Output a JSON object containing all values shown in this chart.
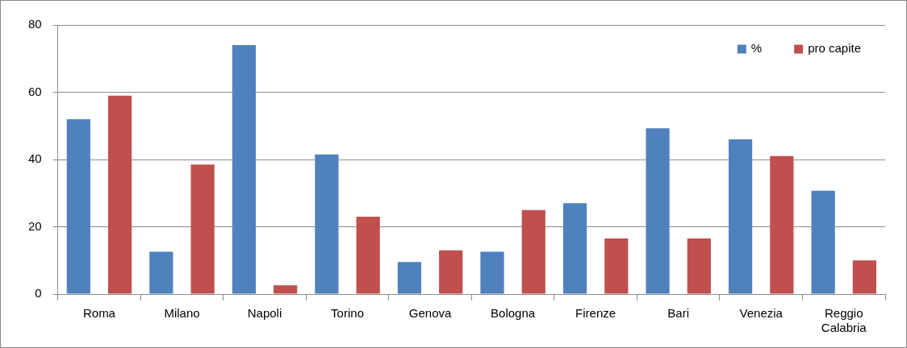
{
  "chart_data": {
    "type": "bar",
    "categories": [
      "Roma",
      "Milano",
      "Napoli",
      "Torino",
      "Genova",
      "Bologna",
      "Firenze",
      "Bari",
      "Venezia",
      "Reggio Calabria"
    ],
    "series": [
      {
        "name": "%",
        "color": "#4f81bd",
        "values": [
          52,
          12.6,
          74,
          41.5,
          9.5,
          12.6,
          27,
          49.3,
          46,
          30.7
        ]
      },
      {
        "name": "pro capite",
        "color": "#c0504d",
        "values": [
          59,
          38.5,
          2.6,
          23,
          13,
          25,
          16.5,
          16.5,
          41,
          10
        ]
      }
    ],
    "ylim": [
      0,
      80
    ],
    "yticks": [
      0,
      20,
      40,
      60,
      80
    ],
    "grid": "y",
    "legend": "top right"
  }
}
